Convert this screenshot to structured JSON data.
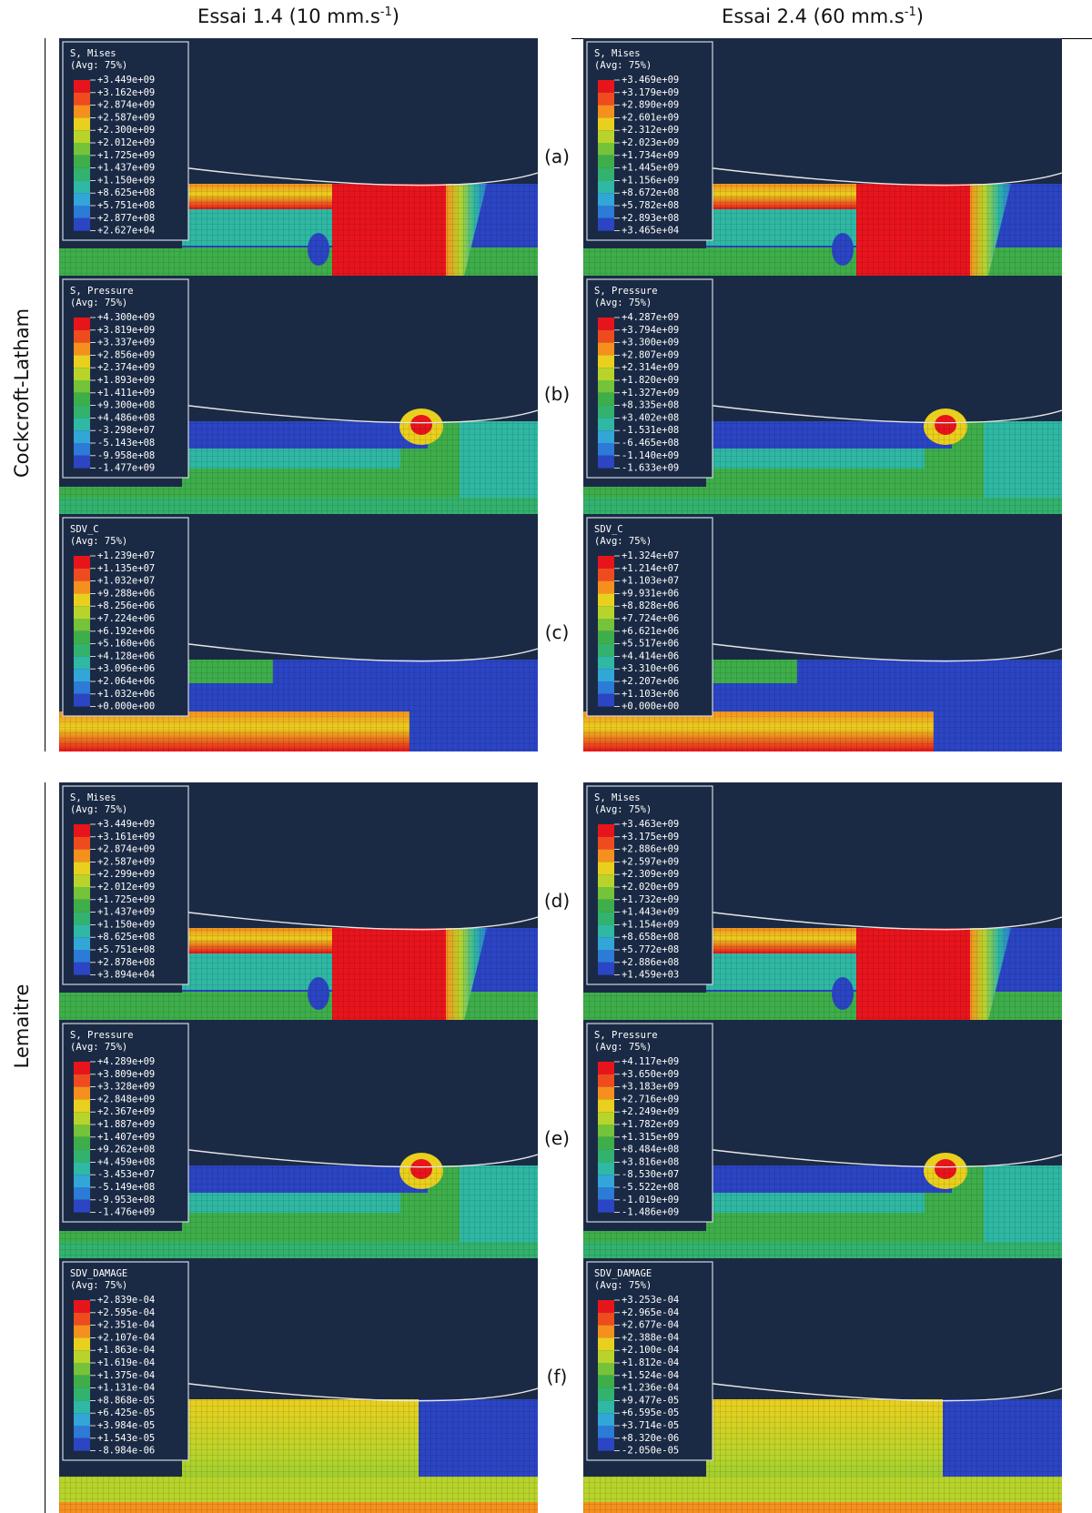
{
  "header": {
    "columns": [
      {
        "prefix": "Essai 1.4 (10 mm.s",
        "sup": "-1",
        "suffix": ")"
      },
      {
        "prefix": "Essai 2.4 (60 mm.s",
        "sup": "-1",
        "suffix": ")"
      }
    ]
  },
  "row_groups": [
    {
      "label": "Cockcroft-Latham"
    },
    {
      "label": "Lemaitre"
    }
  ],
  "rows": [
    {
      "label": "(a)",
      "panels": [
        {
          "legend": {
            "title": "S, Mises",
            "subtitle": "(Avg: 75%)",
            "values": [
              "+3.449e+09",
              "+3.162e+09",
              "+2.874e+09",
              "+2.587e+09",
              "+2.300e+09",
              "+2.012e+09",
              "+1.725e+09",
              "+1.437e+09",
              "+1.150e+09",
              "+8.625e+08",
              "+5.751e+08",
              "+2.877e+08",
              "+2.627e+04"
            ]
          }
        },
        {
          "legend": {
            "title": "S, Mises",
            "subtitle": "(Avg: 75%)",
            "values": [
              "+3.469e+09",
              "+3.179e+09",
              "+2.890e+09",
              "+2.601e+09",
              "+2.312e+09",
              "+2.023e+09",
              "+1.734e+09",
              "+1.445e+09",
              "+1.156e+09",
              "+8.672e+08",
              "+5.782e+08",
              "+2.893e+08",
              "+3.465e+04"
            ]
          }
        }
      ]
    },
    {
      "label": "(b)",
      "panels": [
        {
          "legend": {
            "title": "S, Pressure",
            "subtitle": "(Avg: 75%)",
            "values": [
              "+4.300e+09",
              "+3.819e+09",
              "+3.337e+09",
              "+2.856e+09",
              "+2.374e+09",
              "+1.893e+09",
              "+1.411e+09",
              "+9.300e+08",
              "+4.486e+08",
              "-3.298e+07",
              "-5.143e+08",
              "-9.958e+08",
              "-1.477e+09"
            ]
          }
        },
        {
          "legend": {
            "title": "S, Pressure",
            "subtitle": "(Avg: 75%)",
            "values": [
              "+4.287e+09",
              "+3.794e+09",
              "+3.300e+09",
              "+2.807e+09",
              "+2.314e+09",
              "+1.820e+09",
              "+1.327e+09",
              "+8.335e+08",
              "+3.402e+08",
              "-1.531e+08",
              "-6.465e+08",
              "-1.140e+09",
              "-1.633e+09"
            ]
          }
        }
      ]
    },
    {
      "label": "(c)",
      "panels": [
        {
          "legend": {
            "title": "SDV_C",
            "subtitle": "(Avg: 75%)",
            "values": [
              "+1.239e+07",
              "+1.135e+07",
              "+1.032e+07",
              "+9.288e+06",
              "+8.256e+06",
              "+7.224e+06",
              "+6.192e+06",
              "+5.160e+06",
              "+4.128e+06",
              "+3.096e+06",
              "+2.064e+06",
              "+1.032e+06",
              "+0.000e+00"
            ]
          }
        },
        {
          "legend": {
            "title": "SDV_C",
            "subtitle": "(Avg: 75%)",
            "values": [
              "+1.324e+07",
              "+1.214e+07",
              "+1.103e+07",
              "+9.931e+06",
              "+8.828e+06",
              "+7.724e+06",
              "+6.621e+06",
              "+5.517e+06",
              "+4.414e+06",
              "+3.310e+06",
              "+2.207e+06",
              "+1.103e+06",
              "+0.000e+00"
            ]
          }
        }
      ]
    },
    {
      "label": "(d)",
      "panels": [
        {
          "legend": {
            "title": "S, Mises",
            "subtitle": "(Avg: 75%)",
            "values": [
              "+3.449e+09",
              "+3.161e+09",
              "+2.874e+09",
              "+2.587e+09",
              "+2.299e+09",
              "+2.012e+09",
              "+1.725e+09",
              "+1.437e+09",
              "+1.150e+09",
              "+8.625e+08",
              "+5.751e+08",
              "+2.878e+08",
              "+3.894e+04"
            ]
          }
        },
        {
          "legend": {
            "title": "S, Mises",
            "subtitle": "(Avg: 75%)",
            "values": [
              "+3.463e+09",
              "+3.175e+09",
              "+2.886e+09",
              "+2.597e+09",
              "+2.309e+09",
              "+2.020e+09",
              "+1.732e+09",
              "+1.443e+09",
              "+1.154e+09",
              "+8.658e+08",
              "+5.772e+08",
              "+2.886e+08",
              "+1.459e+03"
            ]
          }
        }
      ]
    },
    {
      "label": "(e)",
      "panels": [
        {
          "legend": {
            "title": "S, Pressure",
            "subtitle": "(Avg: 75%)",
            "values": [
              "+4.289e+09",
              "+3.809e+09",
              "+3.328e+09",
              "+2.848e+09",
              "+2.367e+09",
              "+1.887e+09",
              "+1.407e+09",
              "+9.262e+08",
              "+4.459e+08",
              "-3.453e+07",
              "-5.149e+08",
              "-9.953e+08",
              "-1.476e+09"
            ]
          }
        },
        {
          "legend": {
            "title": "S, Pressure",
            "subtitle": "(Avg: 75%)",
            "values": [
              "+4.117e+09",
              "+3.650e+09",
              "+3.183e+09",
              "+2.716e+09",
              "+2.249e+09",
              "+1.782e+09",
              "+1.315e+09",
              "+8.484e+08",
              "+3.816e+08",
              "-8.530e+07",
              "-5.522e+08",
              "-1.019e+09",
              "-1.486e+09"
            ]
          }
        }
      ]
    },
    {
      "label": "(f)",
      "panels": [
        {
          "legend": {
            "title": "SDV_DAMAGE",
            "subtitle": "(Avg: 75%)",
            "values": [
              "+2.839e-04",
              "+2.595e-04",
              "+2.351e-04",
              "+2.107e-04",
              "+1.863e-04",
              "+1.619e-04",
              "+1.375e-04",
              "+1.131e-04",
              "+8.868e-05",
              "+6.425e-05",
              "+3.984e-05",
              "+1.543e-05",
              "-8.984e-06"
            ]
          }
        },
        {
          "legend": {
            "title": "SDV_DAMAGE",
            "subtitle": "(Avg: 75%)",
            "values": [
              "+3.253e-04",
              "+2.965e-04",
              "+2.677e-04",
              "+2.388e-04",
              "+2.100e-04",
              "+1.812e-04",
              "+1.524e-04",
              "+1.236e-04",
              "+9.477e-05",
              "+6.595e-05",
              "+3.714e-05",
              "+8.320e-06",
              "-2.050e-05"
            ]
          }
        }
      ]
    }
  ]
}
